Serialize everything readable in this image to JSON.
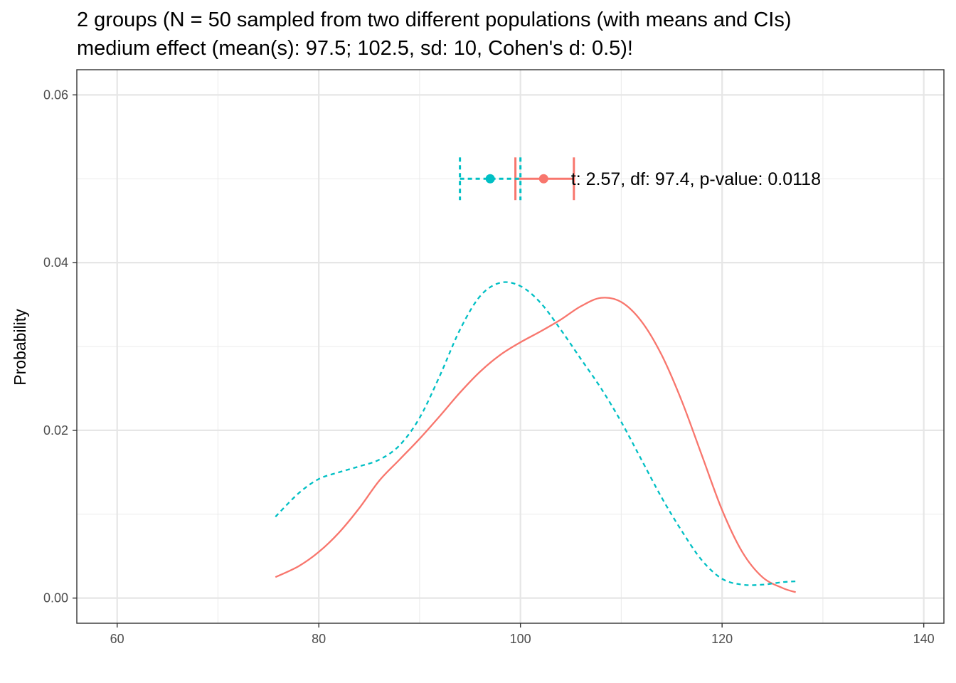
{
  "title_lines": [
    "2 groups (N = 50 sampled from two different populations (with means and CIs)",
    "medium effect (mean(s): 97.5; 102.5, sd: 10, Cohen's d: 0.5)!"
  ],
  "chart_data": {
    "type": "line",
    "xlabel": "",
    "ylabel": "Probability",
    "xlim": [
      56,
      142
    ],
    "ylim": [
      -0.003,
      0.063
    ],
    "x_ticks": [
      60,
      80,
      100,
      120,
      140
    ],
    "x_tick_labels": [
      "60",
      "80",
      "100",
      "120",
      "140"
    ],
    "y_ticks": [
      0.0,
      0.02,
      0.04,
      0.06
    ],
    "y_tick_labels": [
      "0.00",
      "0.02",
      "0.04",
      "0.06"
    ],
    "grid": true,
    "series": [
      {
        "color": "#F8766D",
        "dash": "solid",
        "density": [
          [
            75.7,
            0.0025
          ],
          [
            78,
            0.0038
          ],
          [
            80,
            0.0055
          ],
          [
            82,
            0.0078
          ],
          [
            84,
            0.0107
          ],
          [
            86,
            0.014
          ],
          [
            88,
            0.0165
          ],
          [
            90,
            0.019
          ],
          [
            92,
            0.0217
          ],
          [
            94,
            0.0245
          ],
          [
            96,
            0.027
          ],
          [
            98,
            0.029
          ],
          [
            100,
            0.0305
          ],
          [
            102,
            0.0318
          ],
          [
            104,
            0.0332
          ],
          [
            106,
            0.0348
          ],
          [
            108,
            0.0358
          ],
          [
            110,
            0.0353
          ],
          [
            112,
            0.033
          ],
          [
            114,
            0.029
          ],
          [
            116,
            0.0235
          ],
          [
            118,
            0.017
          ],
          [
            120,
            0.0105
          ],
          [
            122,
            0.0055
          ],
          [
            124,
            0.0025
          ],
          [
            126,
            0.0012
          ],
          [
            127.3,
            0.0007
          ]
        ],
        "mean": 102.3,
        "ci": [
          99.5,
          105.3
        ]
      },
      {
        "color": "#00BFC4",
        "dash": "dashed",
        "density": [
          [
            75.7,
            0.0097
          ],
          [
            78,
            0.0125
          ],
          [
            80,
            0.0142
          ],
          [
            82,
            0.015
          ],
          [
            84,
            0.0157
          ],
          [
            86,
            0.0165
          ],
          [
            88,
            0.0182
          ],
          [
            90,
            0.0215
          ],
          [
            92,
            0.0265
          ],
          [
            94,
            0.032
          ],
          [
            96,
            0.036
          ],
          [
            98,
            0.0376
          ],
          [
            100,
            0.0372
          ],
          [
            102,
            0.0352
          ],
          [
            104,
            0.032
          ],
          [
            106,
            0.0285
          ],
          [
            108,
            0.025
          ],
          [
            110,
            0.021
          ],
          [
            112,
            0.0165
          ],
          [
            114,
            0.012
          ],
          [
            116,
            0.008
          ],
          [
            118,
            0.0045
          ],
          [
            120,
            0.0023
          ],
          [
            122,
            0.0016
          ],
          [
            124,
            0.0016
          ],
          [
            126,
            0.0019
          ],
          [
            127.3,
            0.002
          ]
        ],
        "mean": 97.0,
        "ci": [
          94.0,
          100.0
        ]
      }
    ],
    "errorbar_y": 0.05,
    "annotation": {
      "text": "t: 2.57, df: 97.4, p-value: 0.0118",
      "x": 105.3,
      "y": 0.05
    }
  }
}
